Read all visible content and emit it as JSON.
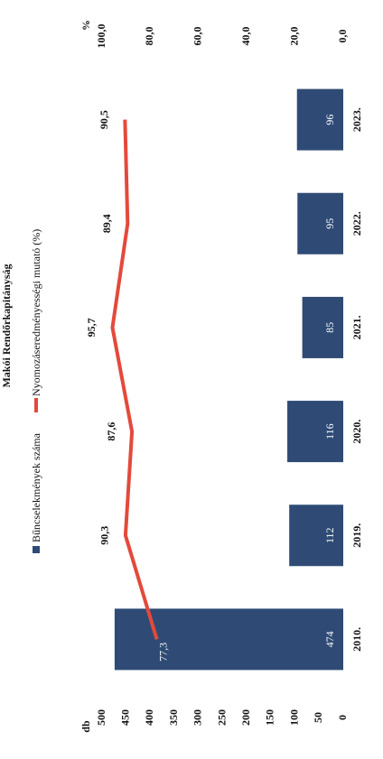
{
  "chart_data": {
    "type": "bar_line",
    "title": "Makói Rendőrkapitányság",
    "y_label": "db",
    "y2_label": "%",
    "categories": [
      "2010.",
      "2019.",
      "2020.",
      "2021.",
      "2022.",
      "2023."
    ],
    "series": [
      {
        "name": "Bűncselekmények száma",
        "type": "bar",
        "color": "#2f4b75",
        "values": [
          474,
          112,
          116,
          85,
          95,
          96
        ]
      },
      {
        "name": "Nyomozáseredményességi mutató (%)",
        "type": "line",
        "axis": "y2",
        "color": "#e4493b",
        "values": [
          77.3,
          90.3,
          87.6,
          95.7,
          89.4,
          90.5
        ],
        "value_labels": [
          "77,3",
          "90,3",
          "87,6",
          "95,7",
          "89,4",
          "90,5"
        ]
      }
    ],
    "ylim": [
      0,
      500
    ],
    "yticks": [
      0,
      50,
      100,
      150,
      200,
      250,
      300,
      350,
      400,
      450,
      500
    ],
    "y2lim": [
      0,
      100
    ],
    "y2ticks": [
      {
        "value": 0,
        "label": "0,0"
      },
      {
        "value": 20,
        "label": "20,0"
      },
      {
        "value": 40,
        "label": "40,0"
      },
      {
        "value": 60,
        "label": "60,0"
      },
      {
        "value": 80,
        "label": "80,0"
      },
      {
        "value": 100,
        "label": "100,0"
      }
    ],
    "grid": false
  }
}
